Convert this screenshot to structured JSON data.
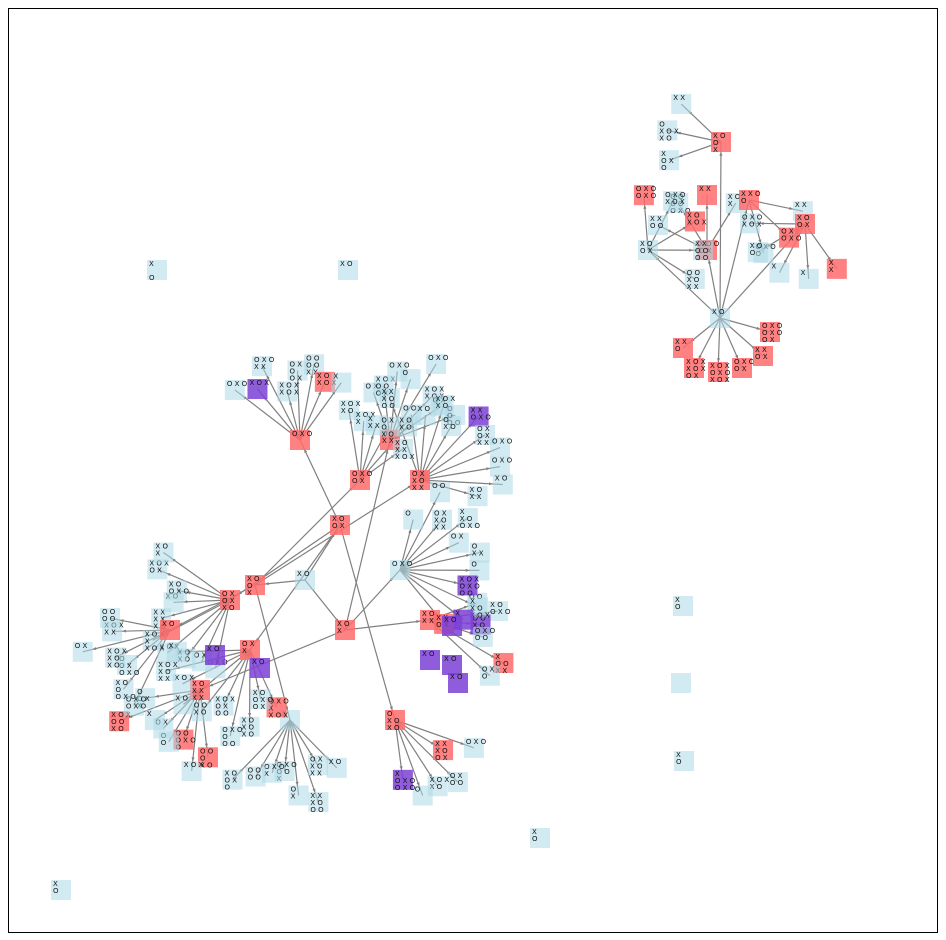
{
  "colors": {
    "background": "#ffffff",
    "border": "#000000",
    "edge": "#808080",
    "node_default": "#add8e6",
    "node_highlight": "#ff6b6b",
    "node_terminal": "#7b3fd6"
  },
  "node_style": {
    "default": "light-blue square",
    "highlight": "red square",
    "terminal": "purple square"
  },
  "isolated_nodes": [
    {
      "id": "iso-a",
      "board": [
        "X",
        "",
        "O"
      ]
    },
    {
      "id": "iso-b",
      "board": [
        "X  O"
      ]
    },
    {
      "id": "iso-c",
      "board": [
        "X",
        "O"
      ]
    },
    {
      "id": "iso-d",
      "board": [
        ""
      ]
    },
    {
      "id": "iso-e",
      "board": [
        "X",
        "O"
      ]
    },
    {
      "id": "iso-f",
      "board": [
        "X",
        "O"
      ]
    },
    {
      "id": "iso-g",
      "board": [
        "X",
        "O"
      ]
    }
  ],
  "right_cluster": {
    "root": {
      "id": "rc-root",
      "board": [
        "X  O"
      ]
    },
    "hub_nodes": [
      {
        "id": "rc-h1",
        "board": [
          "X O O",
          "O X"
        ],
        "style": "highlight"
      },
      {
        "id": "rc-h2",
        "board": [
          "X O",
          "O X"
        ],
        "style": "default"
      },
      {
        "id": "rc-h3",
        "board": [
          "X X O",
          "O"
        ],
        "style": "highlight"
      },
      {
        "id": "rc-h4",
        "board": [
          "X O",
          "O X"
        ],
        "style": "highlight"
      },
      {
        "id": "rc-h5",
        "board": [
          "X O",
          "O",
          "X"
        ],
        "style": "highlight"
      }
    ]
  },
  "main_cluster": {
    "root": {
      "id": "mc-root",
      "board": [
        "X O"
      ]
    },
    "hub_nodes": [
      {
        "id": "mc-h1",
        "board": [
          "X O",
          "O X"
        ],
        "style": "highlight"
      },
      {
        "id": "mc-h2",
        "board": [
          "X O",
          "X"
        ],
        "style": "highlight"
      },
      {
        "id": "mc-h3",
        "board": [
          "X O",
          "O",
          "X"
        ],
        "style": "highlight"
      }
    ]
  }
}
